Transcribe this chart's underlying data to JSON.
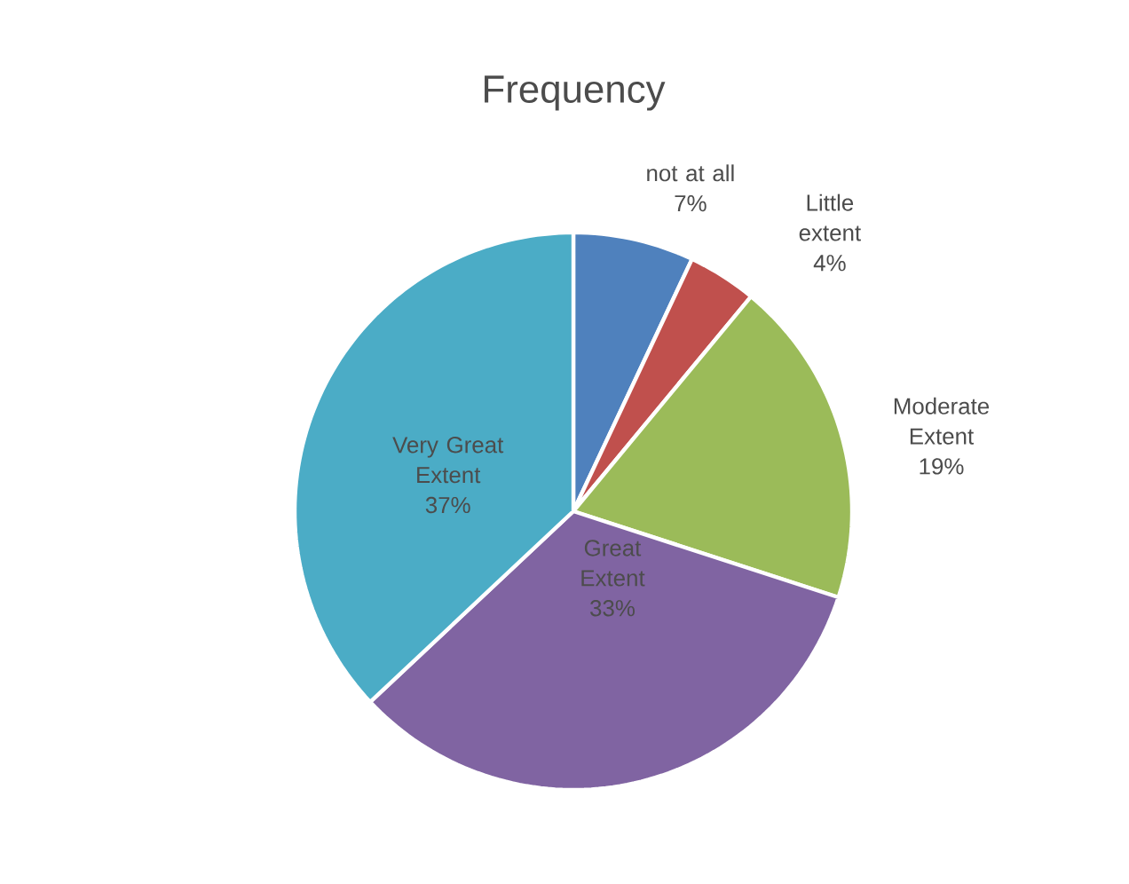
{
  "chart_data": {
    "type": "pie",
    "title": "Frequency",
    "categories": [
      "not at all",
      "Little extent",
      "Moderate Extent",
      "Great Extent",
      "Very Great Extent"
    ],
    "values": [
      7,
      4,
      19,
      33,
      37
    ],
    "value_labels": [
      "7%",
      "4%",
      "19%",
      "33%",
      "37%"
    ],
    "colors": [
      "#4f81bd",
      "#c0504d",
      "#9bbb59",
      "#8064a2",
      "#4bacc6"
    ]
  }
}
